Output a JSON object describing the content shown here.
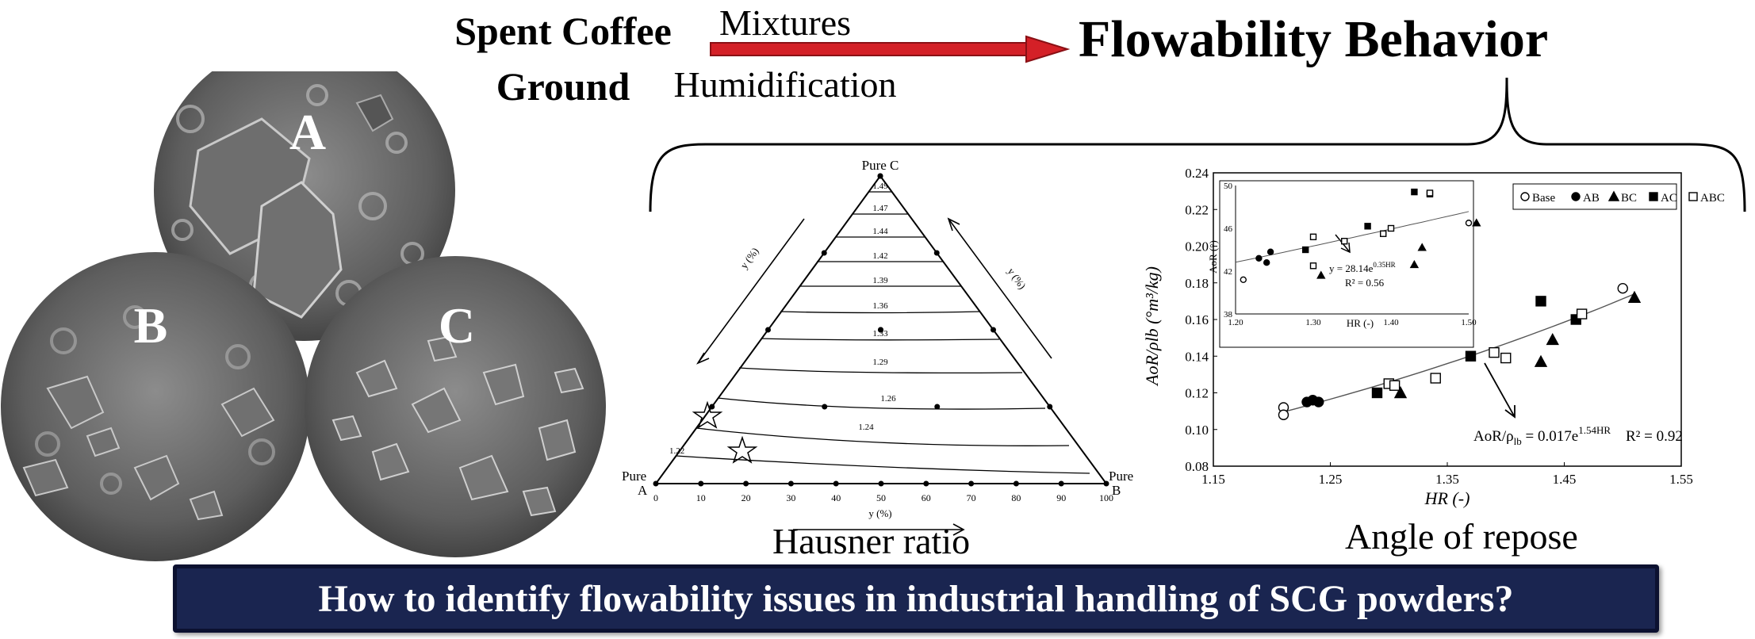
{
  "header": {
    "source_title": "Spent Coffee Ground",
    "arrow_top_label": "Mixtures",
    "arrow_bottom_label": "Humidification",
    "target_title": "Flowability Behavior"
  },
  "micrographs": [
    {
      "label": "A"
    },
    {
      "label": "B"
    },
    {
      "label": "C"
    }
  ],
  "ternary": {
    "caption": "Hausner ratio",
    "vertex_top": "Pure C",
    "vertex_left": "Pure A",
    "vertex_right": "Pure B",
    "axis_label": "y (%)",
    "ticks": [
      "0",
      "10",
      "20",
      "30",
      "40",
      "50",
      "60",
      "70",
      "80",
      "90",
      "100"
    ],
    "contours": [
      "1.49",
      "1.47",
      "1.44",
      "1.42",
      "1.39",
      "1.36",
      "1.33",
      "1.29",
      "1.26",
      "1.24",
      "1.22"
    ]
  },
  "chart_data": {
    "type": "scatter",
    "caption": "Angle of repose",
    "xlabel": "HR (-)",
    "ylabel": "AoR/ρlb (°m³/kg)",
    "xlim": [
      1.15,
      1.55
    ],
    "ylim": [
      0.08,
      0.24
    ],
    "xticks": [
      "1.15",
      "1.25",
      "1.35",
      "1.45",
      "1.55"
    ],
    "yticks": [
      "0.08",
      "0.10",
      "0.12",
      "0.14",
      "0.16",
      "0.18",
      "0.20",
      "0.22",
      "0.24"
    ],
    "legend": [
      "Base",
      "AB",
      "BC",
      "AC",
      "ABC"
    ],
    "legend_position": "top-right",
    "series": [
      {
        "name": "Base",
        "marker": "circle-open",
        "points": [
          [
            1.21,
            0.112
          ],
          [
            1.21,
            0.108
          ],
          [
            1.5,
            0.177
          ]
        ]
      },
      {
        "name": "AB",
        "marker": "circle-filled",
        "points": [
          [
            1.23,
            0.115
          ],
          [
            1.235,
            0.116
          ],
          [
            1.24,
            0.115
          ]
        ]
      },
      {
        "name": "BC",
        "marker": "triangle-filled",
        "points": [
          [
            1.31,
            0.12
          ],
          [
            1.43,
            0.137
          ],
          [
            1.44,
            0.149
          ],
          [
            1.51,
            0.172
          ]
        ]
      },
      {
        "name": "AC",
        "marker": "square-filled",
        "points": [
          [
            1.29,
            0.12
          ],
          [
            1.37,
            0.14
          ],
          [
            1.43,
            0.17
          ],
          [
            1.46,
            0.16
          ]
        ]
      },
      {
        "name": "ABC",
        "marker": "square-open",
        "points": [
          [
            1.3,
            0.125
          ],
          [
            1.305,
            0.124
          ],
          [
            1.34,
            0.128
          ],
          [
            1.39,
            0.142
          ],
          [
            1.4,
            0.139
          ],
          [
            1.465,
            0.163
          ]
        ]
      }
    ],
    "fit": {
      "a": 0.017,
      "b": 1.54,
      "x_range": [
        1.21,
        1.51
      ]
    },
    "equation": "AoR/ρlb = 0.017e1.54HR",
    "r2": "R² = 0.92",
    "inset": {
      "xlabel": "HR (-)",
      "ylabel": "AoR (°)",
      "xlim": [
        1.2,
        1.5
      ],
      "ylim": [
        38,
        50
      ],
      "xticks": [
        "1.20",
        "1.30",
        "1.40",
        "1.50"
      ],
      "yticks": [
        "38",
        "42",
        "46",
        "50"
      ],
      "series": [
        {
          "name": "Base",
          "marker": "circle-open",
          "points": [
            [
              1.21,
              41.2
            ],
            [
              1.5,
              46.5
            ]
          ]
        },
        {
          "name": "AB",
          "marker": "circle-filled",
          "points": [
            [
              1.23,
              43.2
            ],
            [
              1.24,
              42.8
            ],
            [
              1.245,
              43.8
            ]
          ]
        },
        {
          "name": "BC",
          "marker": "triangle-filled",
          "points": [
            [
              1.31,
              41.6
            ],
            [
              1.43,
              42.6
            ],
            [
              1.44,
              44.2
            ],
            [
              1.51,
              46.5
            ]
          ]
        },
        {
          "name": "AC",
          "marker": "square-filled",
          "points": [
            [
              1.29,
              44.0
            ],
            [
              1.37,
              46.2
            ],
            [
              1.43,
              49.4
            ],
            [
              1.45,
              49.2
            ]
          ]
        },
        {
          "name": "ABC",
          "marker": "square-open",
          "points": [
            [
              1.3,
              42.5
            ],
            [
              1.3,
              45.2
            ],
            [
              1.34,
              44.8
            ],
            [
              1.39,
              45.5
            ],
            [
              1.4,
              46.0
            ],
            [
              1.45,
              49.3
            ]
          ]
        }
      ],
      "fit": {
        "a": 28.14,
        "b": 0.35,
        "x_range": [
          1.2,
          1.5
        ]
      },
      "equation": "y = 28.14e0.35HR",
      "r2": "R² = 0.56"
    }
  },
  "banner": {
    "question": "How to identify flowability issues in industrial handling of SCG powders?"
  }
}
